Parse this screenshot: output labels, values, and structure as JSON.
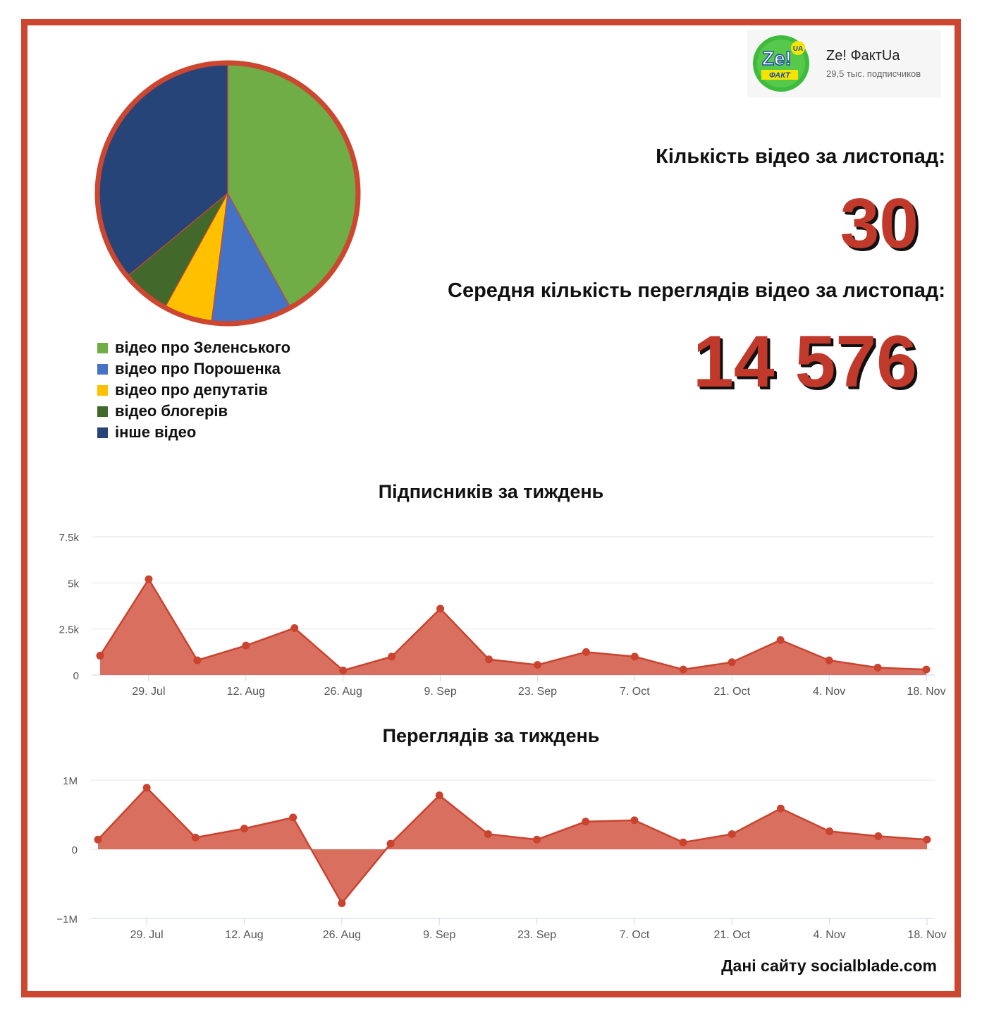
{
  "colors": {
    "frame": "#cc4630",
    "accent": "#c0392b",
    "area_fill": "#d9705f",
    "line": "#c9432e",
    "pie_border": "#cc4630"
  },
  "channel": {
    "name": "Ze! ФактUa",
    "subscribers": "29,5 тыс. подписчиков",
    "avatar_icon": "channel-avatar-icon",
    "logo_text": "Ze!",
    "logo_sub": "ФАКТ",
    "logo_badge": "UA"
  },
  "stats": {
    "videos_label": "Кількість відео за листопад:",
    "videos_value": "30",
    "views_label": "Середня кількість переглядів відео за листопад:",
    "views_value": "14 576"
  },
  "source_note": "Дані сайту socialblade.com",
  "chart_data": [
    {
      "type": "pie",
      "legend_position": "bottom-left",
      "slices": [
        {
          "label": "відео про Зеленського",
          "value": 42,
          "color": "#70ad47"
        },
        {
          "label": "відео про Порошенка",
          "value": 10,
          "color": "#4472c4"
        },
        {
          "label": "відео про депутатів",
          "value": 6,
          "color": "#ffc000"
        },
        {
          "label": "відео блогерів",
          "value": 6,
          "color": "#43682b"
        },
        {
          "label": "інше відео",
          "value": 36,
          "color": "#264478"
        }
      ]
    },
    {
      "type": "area",
      "title": "Підписників за тиждень",
      "x": [
        "2019-07-22",
        "2019-07-29",
        "2019-08-05",
        "2019-08-12",
        "2019-08-19",
        "2019-08-26",
        "2019-09-02",
        "2019-09-09",
        "2019-09-16",
        "2019-09-23",
        "2019-09-30",
        "2019-10-07",
        "2019-10-14",
        "2019-10-21",
        "2019-10-28",
        "2019-11-04",
        "2019-11-11",
        "2019-11-18"
      ],
      "values": [
        1050,
        5200,
        800,
        1600,
        2550,
        250,
        1000,
        3600,
        850,
        550,
        1250,
        1000,
        300,
        700,
        1900,
        800,
        400,
        300
      ],
      "xticks": [
        "29. Jul",
        "12. Aug",
        "26. Aug",
        "9. Sep",
        "23. Sep",
        "7. Oct",
        "21. Oct",
        "4. Nov",
        "18. Nov"
      ],
      "xtick_dates": [
        "2019-07-29",
        "2019-08-12",
        "2019-08-26",
        "2019-09-09",
        "2019-09-23",
        "2019-10-07",
        "2019-10-21",
        "2019-11-04",
        "2019-11-18"
      ],
      "yticks": [
        "0",
        "2.5k",
        "5k",
        "7.5k"
      ],
      "ytick_values": [
        0,
        2500,
        5000,
        7500
      ],
      "ylim": [
        0,
        7500
      ],
      "grid": true
    },
    {
      "type": "area",
      "title": "Переглядів за тиждень",
      "x": [
        "2019-07-22",
        "2019-07-29",
        "2019-08-05",
        "2019-08-12",
        "2019-08-19",
        "2019-08-26",
        "2019-09-02",
        "2019-09-09",
        "2019-09-16",
        "2019-09-23",
        "2019-09-30",
        "2019-10-07",
        "2019-10-14",
        "2019-10-21",
        "2019-10-28",
        "2019-11-04",
        "2019-11-11",
        "2019-11-18"
      ],
      "values": [
        140000,
        890000,
        170000,
        300000,
        460000,
        -780000,
        80000,
        780000,
        220000,
        140000,
        400000,
        420000,
        100000,
        220000,
        590000,
        260000,
        190000,
        140000
      ],
      "xticks": [
        "29. Jul",
        "12. Aug",
        "26. Aug",
        "9. Sep",
        "23. Sep",
        "7. Oct",
        "21. Oct",
        "4. Nov",
        "18. Nov"
      ],
      "xtick_dates": [
        "2019-07-29",
        "2019-08-12",
        "2019-08-26",
        "2019-09-09",
        "2019-09-23",
        "2019-10-07",
        "2019-10-21",
        "2019-11-04",
        "2019-11-18"
      ],
      "yticks": [
        "−1M",
        "0",
        "1M"
      ],
      "ytick_values": [
        -1000000,
        0,
        1000000
      ],
      "ylim": [
        -1000000,
        1000000
      ],
      "grid": true
    }
  ]
}
